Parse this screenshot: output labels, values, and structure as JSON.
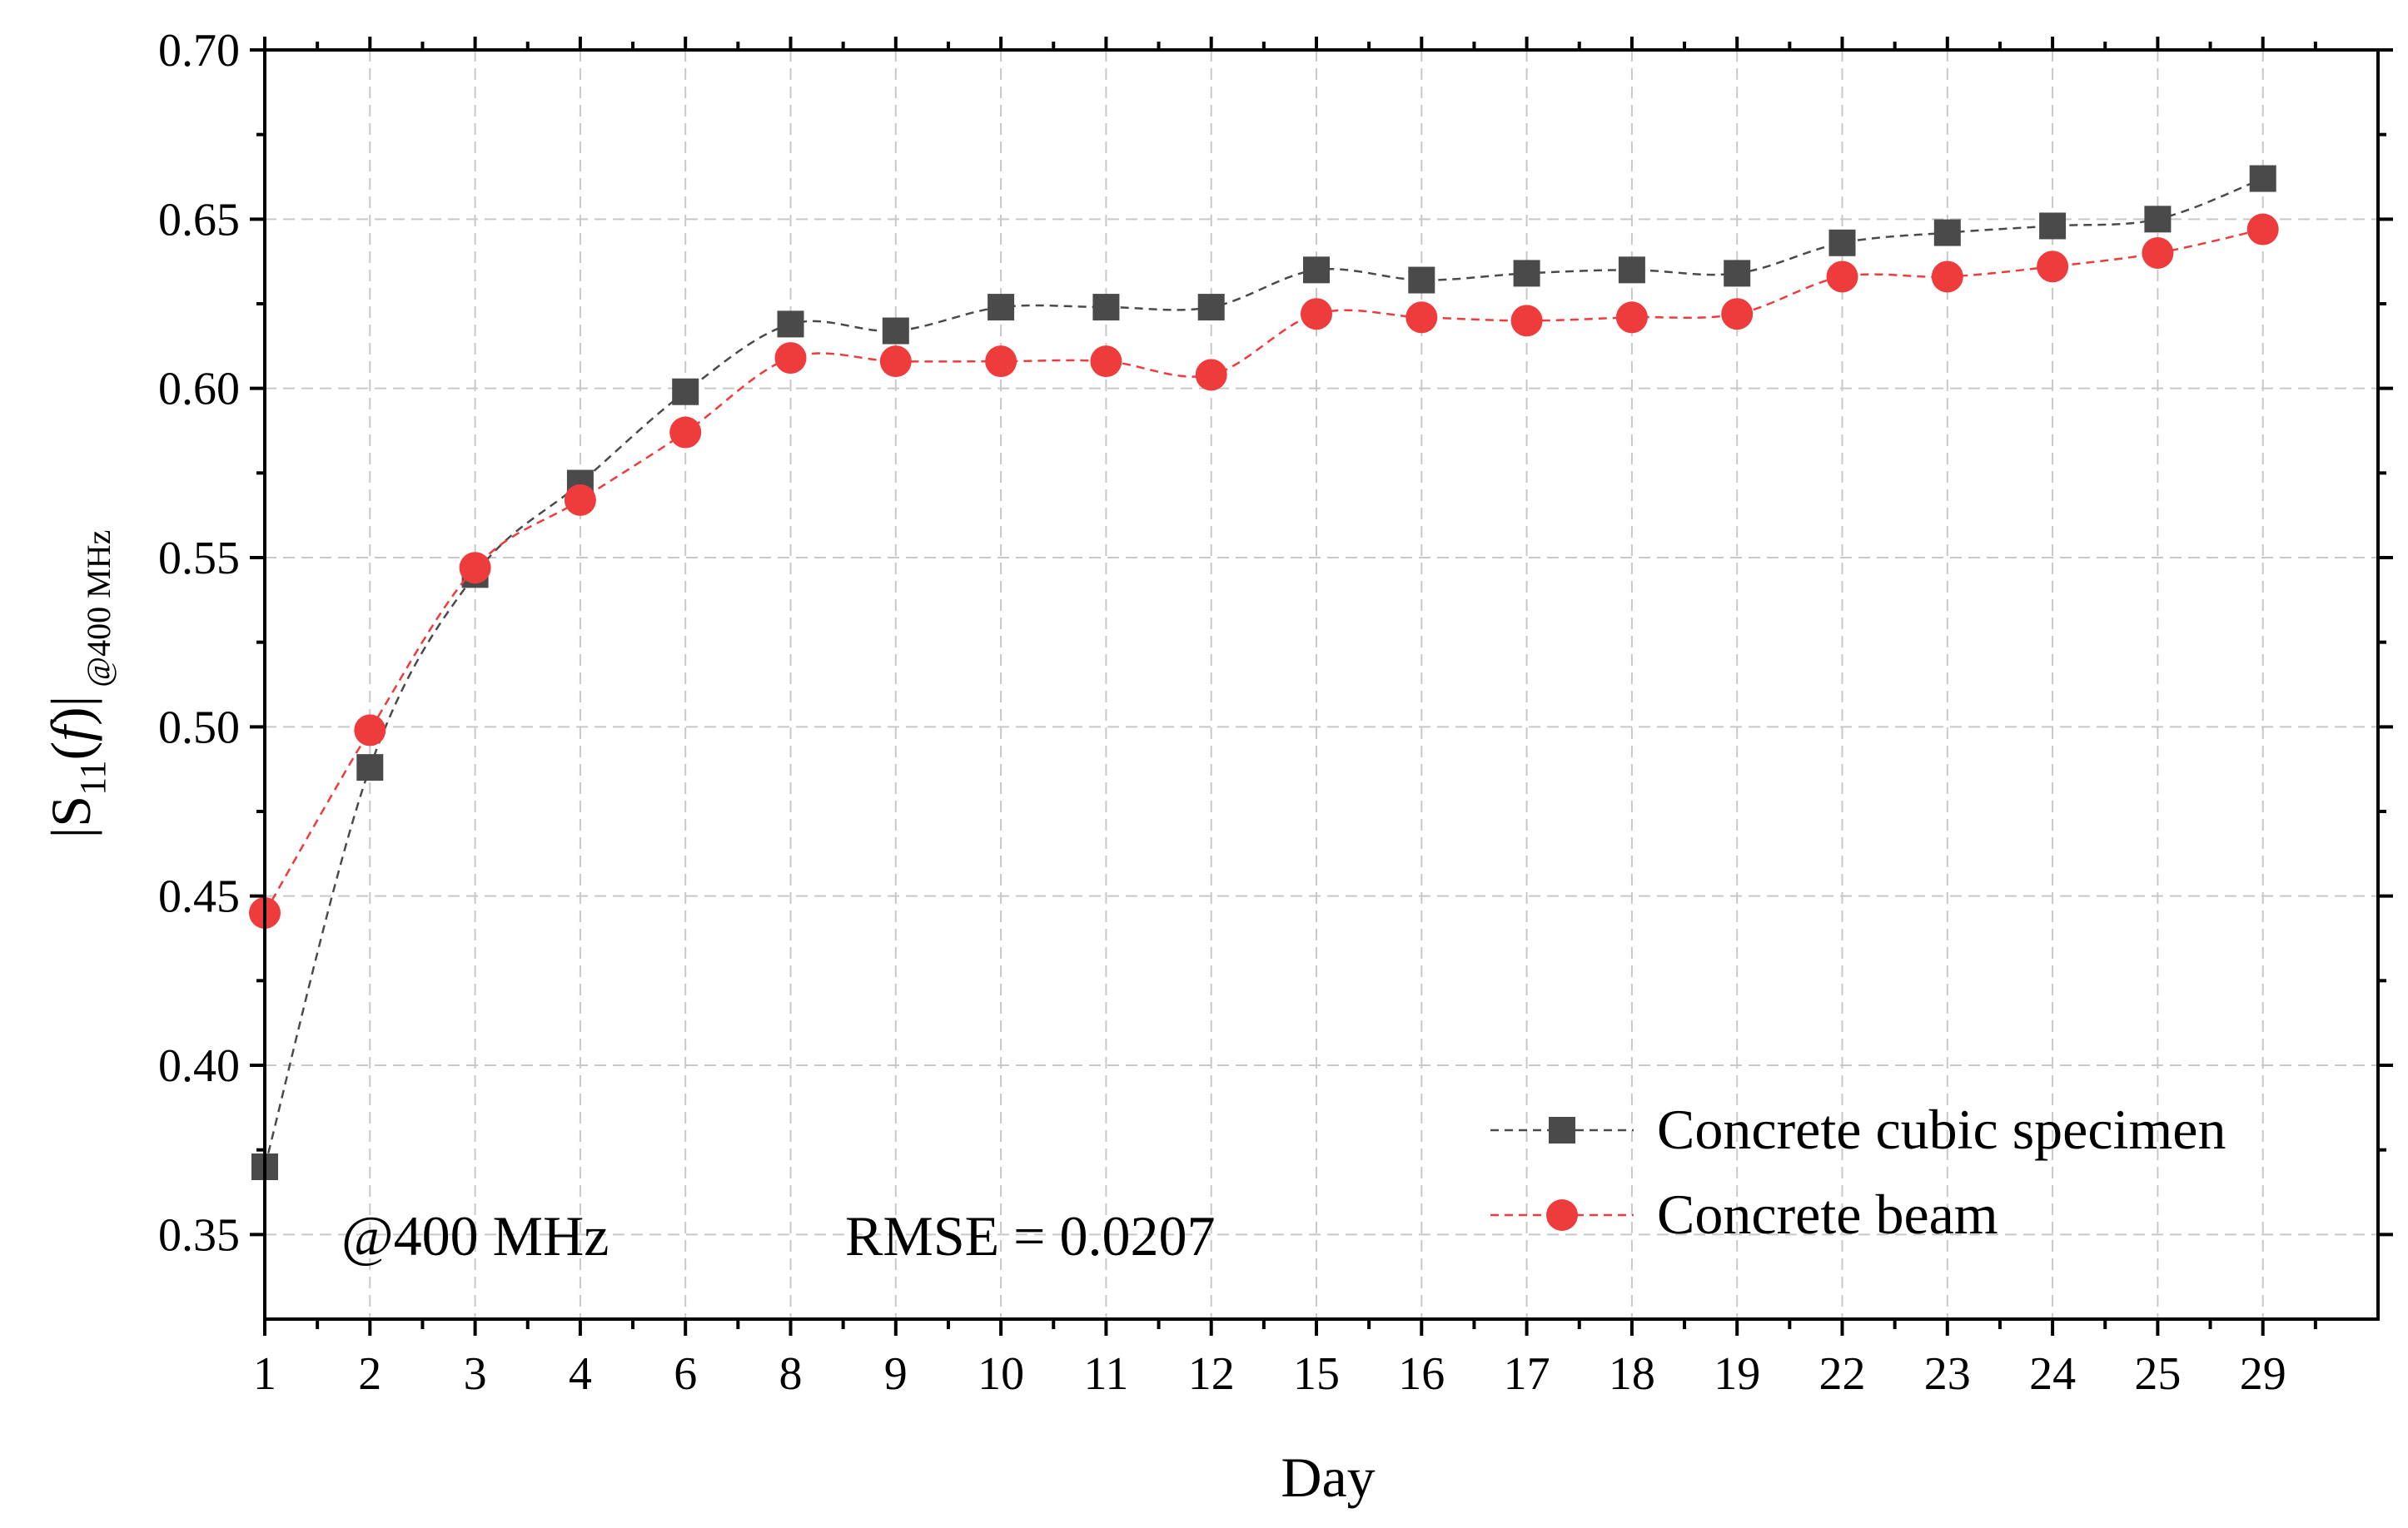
{
  "chart_data": {
    "type": "line",
    "title": "",
    "xlabel": "Day",
    "ylabel": {
      "prefix": "|S",
      "sub": "11",
      "open": "(",
      "var": "f",
      "close": ")|",
      "sub2": "@400 MHz"
    },
    "categories": [
      "1",
      "2",
      "3",
      "4",
      "6",
      "8",
      "9",
      "10",
      "11",
      "12",
      "15",
      "16",
      "17",
      "18",
      "19",
      "22",
      "23",
      "24",
      "25",
      "29"
    ],
    "ylim": [
      0.325,
      0.7
    ],
    "yticks": [
      "0.35",
      "0.40",
      "0.45",
      "0.50",
      "0.55",
      "0.60",
      "0.65",
      "0.70"
    ],
    "grid": true,
    "legend_position": "bottom-right",
    "series": [
      {
        "name": "Concrete cubic specimen",
        "color": "#4a4a4a",
        "marker": "square",
        "values": [
          0.37,
          0.488,
          0.545,
          0.572,
          0.599,
          0.619,
          0.617,
          0.624,
          0.624,
          0.624,
          0.635,
          0.632,
          0.634,
          0.635,
          0.634,
          0.643,
          0.646,
          0.648,
          0.65,
          0.662
        ]
      },
      {
        "name": "Concrete beam",
        "color": "#ee3b3b",
        "marker": "circle",
        "values": [
          0.445,
          0.499,
          0.547,
          0.567,
          0.587,
          0.609,
          0.608,
          0.608,
          0.608,
          0.604,
          0.622,
          0.621,
          0.62,
          0.621,
          0.622,
          0.633,
          0.633,
          0.636,
          0.64,
          0.647
        ]
      }
    ],
    "annotations": [
      "@400 MHz",
      "RMSE = 0.0207"
    ]
  }
}
